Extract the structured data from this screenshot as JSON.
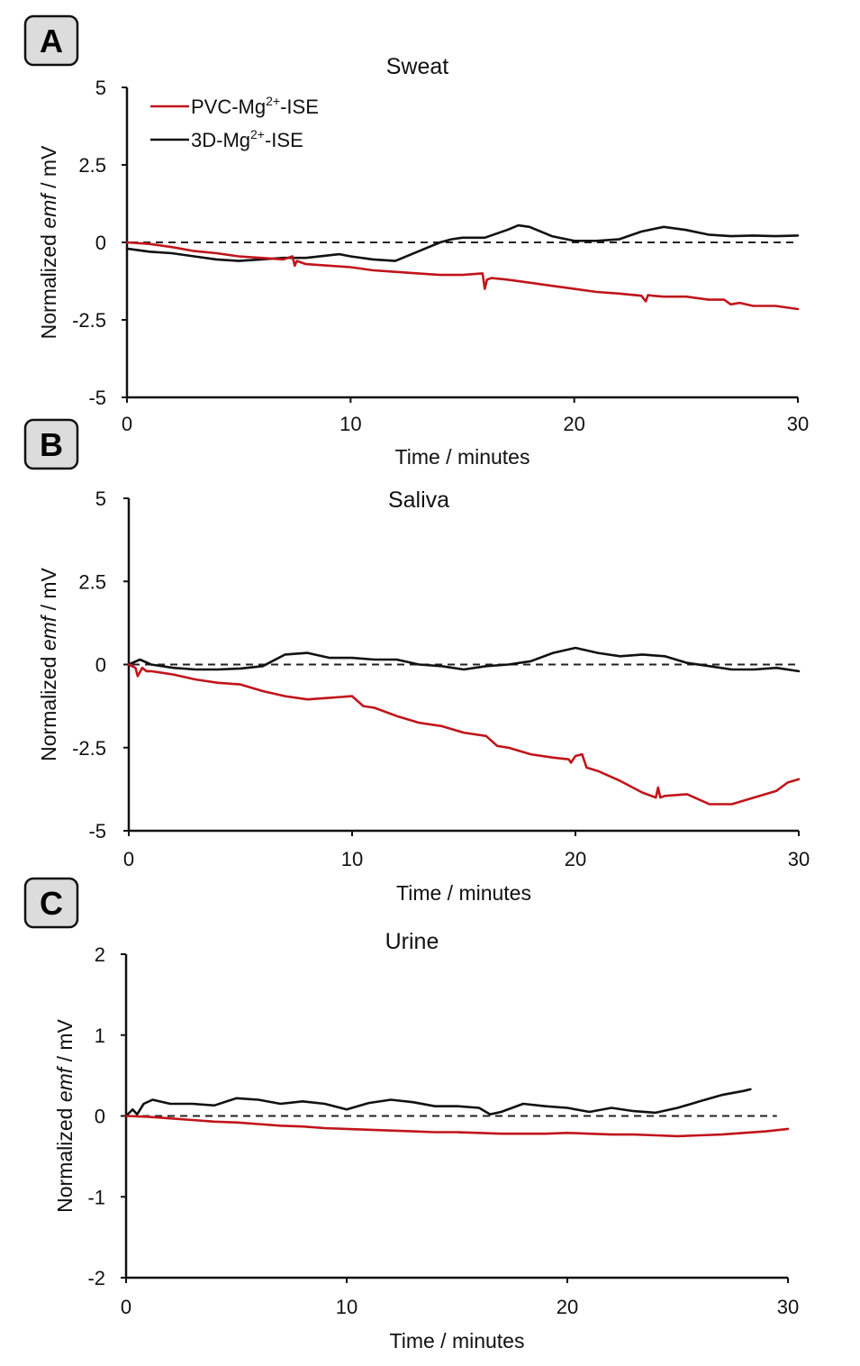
{
  "chart_data": [
    {
      "type": "line",
      "panel_label": "A",
      "title": "Sweat",
      "xlabel": "Time / minutes",
      "ylabel_prefix": "Normalized ",
      "ylabel_italic": "emf",
      "ylabel_suffix": " / mV",
      "xlim": [
        0,
        30
      ],
      "ylim": [
        -5,
        5
      ],
      "xticks": [
        0,
        10,
        20,
        30
      ],
      "xtick_labels": [
        "0",
        "10",
        "20",
        "30"
      ],
      "yticks": [
        5,
        2.5,
        0,
        -2.5,
        -5
      ],
      "ytick_labels": [
        "5",
        "2.5",
        "0",
        "-2.5",
        "-5"
      ],
      "grid": false,
      "reference_line": {
        "y": 0,
        "style": "dashed",
        "x_end": 30
      },
      "legend": {
        "placement": "top-left",
        "entries": [
          {
            "base": "PVC-Mg",
            "sup": "2+",
            "tail": "-ISE",
            "color": "#c0151b"
          },
          {
            "base": "3D-Mg",
            "sup": "2+",
            "tail": "-ISE",
            "color": "#111111"
          }
        ]
      },
      "series": [
        {
          "name": "PVC-Mg2+-ISE",
          "color": "#c0151b",
          "x": [
            0,
            1,
            2,
            3,
            4,
            5,
            6,
            7,
            7.4,
            7.5,
            7.6,
            8,
            9,
            10,
            11,
            12,
            13,
            14,
            15,
            15.9,
            16.0,
            16.1,
            16.3,
            17,
            18,
            19,
            20,
            21,
            22,
            23,
            23.2,
            23.3,
            23.5,
            24,
            25,
            26,
            26.7,
            27,
            27.4,
            28,
            29,
            30
          ],
          "y": [
            0.0,
            -0.05,
            -0.15,
            -0.28,
            -0.35,
            -0.45,
            -0.5,
            -0.55,
            -0.45,
            -0.75,
            -0.6,
            -0.7,
            -0.75,
            -0.8,
            -0.9,
            -0.95,
            -1.0,
            -1.05,
            -1.05,
            -1.0,
            -1.5,
            -1.2,
            -1.15,
            -1.2,
            -1.3,
            -1.4,
            -1.5,
            -1.6,
            -1.65,
            -1.72,
            -1.9,
            -1.7,
            -1.72,
            -1.75,
            -1.75,
            -1.85,
            -1.85,
            -2.0,
            -1.95,
            -2.05,
            -2.05,
            -2.15
          ]
        },
        {
          "name": "3D-Mg2+-ISE",
          "color": "#111111",
          "x": [
            0,
            1,
            2,
            3,
            4,
            5,
            6,
            7,
            8,
            9,
            9.5,
            10,
            11,
            12,
            13,
            14,
            14.5,
            15,
            16,
            17,
            17.5,
            18,
            19,
            20,
            21,
            22,
            23,
            24,
            25,
            26,
            27,
            28,
            29,
            30
          ],
          "y": [
            -0.2,
            -0.3,
            -0.35,
            -0.45,
            -0.55,
            -0.6,
            -0.55,
            -0.5,
            -0.5,
            -0.42,
            -0.38,
            -0.45,
            -0.55,
            -0.6,
            -0.3,
            0.0,
            0.1,
            0.15,
            0.15,
            0.4,
            0.55,
            0.5,
            0.2,
            0.05,
            0.05,
            0.1,
            0.35,
            0.5,
            0.4,
            0.25,
            0.2,
            0.22,
            0.2,
            0.22
          ]
        }
      ]
    },
    {
      "type": "line",
      "panel_label": "B",
      "title": "Saliva",
      "xlabel": "Time / minutes",
      "ylabel_prefix": "Normalized ",
      "ylabel_italic": "emf",
      "ylabel_suffix": " / mV",
      "xlim": [
        0,
        30
      ],
      "ylim": [
        -5,
        5
      ],
      "xticks": [
        0,
        10,
        20,
        30
      ],
      "xtick_labels": [
        "0",
        "10",
        "20",
        "30"
      ],
      "yticks": [
        5,
        2.5,
        0,
        -2.5,
        -5
      ],
      "ytick_labels": [
        "5",
        "2.5",
        "0",
        "-2.5",
        "-5"
      ],
      "grid": false,
      "reference_line": {
        "y": 0,
        "style": "dashed",
        "x_end": 30
      },
      "series": [
        {
          "name": "PVC-Mg2+-ISE",
          "color": "#c0151b",
          "x": [
            0,
            0.3,
            0.4,
            0.6,
            0.8,
            1,
            1.5,
            2,
            3,
            4,
            5,
            6,
            7,
            8,
            9,
            10,
            10.5,
            11,
            12,
            13,
            14,
            15,
            16,
            16.5,
            17,
            18,
            19,
            19.7,
            19.8,
            20,
            20.3,
            20.5,
            21,
            22,
            23,
            23.6,
            23.7,
            23.8,
            24,
            25,
            26,
            27,
            28,
            29,
            29.5,
            30
          ],
          "y": [
            0.0,
            -0.1,
            -0.35,
            -0.1,
            -0.2,
            -0.2,
            -0.25,
            -0.3,
            -0.45,
            -0.55,
            -0.6,
            -0.8,
            -0.95,
            -1.05,
            -1.0,
            -0.95,
            -1.25,
            -1.3,
            -1.55,
            -1.75,
            -1.85,
            -2.05,
            -2.15,
            -2.45,
            -2.5,
            -2.7,
            -2.8,
            -2.85,
            -2.95,
            -2.75,
            -2.7,
            -3.1,
            -3.2,
            -3.5,
            -3.85,
            -4.0,
            -3.7,
            -4.0,
            -3.95,
            -3.9,
            -4.2,
            -4.2,
            -4.0,
            -3.8,
            -3.55,
            -3.45
          ]
        },
        {
          "name": "3D-Mg2+-ISE",
          "color": "#111111",
          "x": [
            0,
            0.5,
            1,
            2,
            3,
            4,
            5,
            6,
            7,
            8,
            9,
            10,
            11,
            12,
            13,
            14,
            15,
            16,
            17,
            18,
            19,
            20,
            21,
            22,
            23,
            24,
            25,
            26,
            27,
            28,
            29,
            30
          ],
          "y": [
            0.0,
            0.15,
            0.0,
            -0.1,
            -0.15,
            -0.15,
            -0.12,
            -0.05,
            0.3,
            0.35,
            0.2,
            0.2,
            0.15,
            0.15,
            0.0,
            -0.05,
            -0.15,
            -0.05,
            0.0,
            0.1,
            0.35,
            0.5,
            0.35,
            0.25,
            0.3,
            0.25,
            0.05,
            -0.05,
            -0.15,
            -0.15,
            -0.1,
            -0.2
          ]
        }
      ]
    },
    {
      "type": "line",
      "panel_label": "C",
      "title": "Urine",
      "xlabel": "Time / minutes",
      "ylabel_prefix": "Normalized ",
      "ylabel_italic": "emf",
      "ylabel_suffix": " / mV",
      "xlim": [
        0,
        30
      ],
      "ylim": [
        -2,
        2
      ],
      "xticks": [
        0,
        10,
        20,
        30
      ],
      "xtick_labels": [
        "0",
        "10",
        "20",
        "30"
      ],
      "yticks": [
        2,
        1,
        0,
        -1,
        -2
      ],
      "ytick_labels": [
        "2",
        "1",
        "0",
        "-1",
        "-2"
      ],
      "grid": false,
      "reference_line": {
        "y": 0,
        "style": "dashed",
        "x_end": 29.5
      },
      "series": [
        {
          "name": "PVC-Mg2+-ISE",
          "color": "#c0151b",
          "x": [
            0,
            1,
            2,
            3,
            4,
            5,
            6,
            7,
            8,
            9,
            10,
            11,
            12,
            13,
            14,
            15,
            16,
            17,
            18,
            19,
            20,
            21,
            22,
            23,
            24,
            25,
            26,
            27,
            28,
            29,
            30
          ],
          "y": [
            0.0,
            -0.01,
            -0.03,
            -0.05,
            -0.07,
            -0.08,
            -0.1,
            -0.12,
            -0.13,
            -0.15,
            -0.16,
            -0.17,
            -0.18,
            -0.19,
            -0.2,
            -0.2,
            -0.21,
            -0.22,
            -0.22,
            -0.22,
            -0.21,
            -0.22,
            -0.23,
            -0.23,
            -0.24,
            -0.25,
            -0.24,
            -0.23,
            -0.21,
            -0.19,
            -0.16
          ]
        },
        {
          "name": "3D-Mg2+-ISE",
          "color": "#111111",
          "x": [
            0,
            0.3,
            0.5,
            0.8,
            1.2,
            2,
            3,
            4,
            5,
            6,
            7,
            8,
            9,
            10,
            11,
            12,
            13,
            14,
            15,
            16,
            16.5,
            17,
            18,
            19,
            20,
            21,
            22,
            23,
            24,
            25,
            26,
            27,
            28,
            28.3
          ],
          "y": [
            0.0,
            0.08,
            0.02,
            0.15,
            0.2,
            0.15,
            0.15,
            0.13,
            0.22,
            0.2,
            0.15,
            0.18,
            0.15,
            0.08,
            0.16,
            0.2,
            0.17,
            0.12,
            0.12,
            0.1,
            0.02,
            0.05,
            0.15,
            0.12,
            0.1,
            0.05,
            0.1,
            0.06,
            0.04,
            0.1,
            0.18,
            0.26,
            0.31,
            0.33
          ]
        }
      ]
    }
  ]
}
